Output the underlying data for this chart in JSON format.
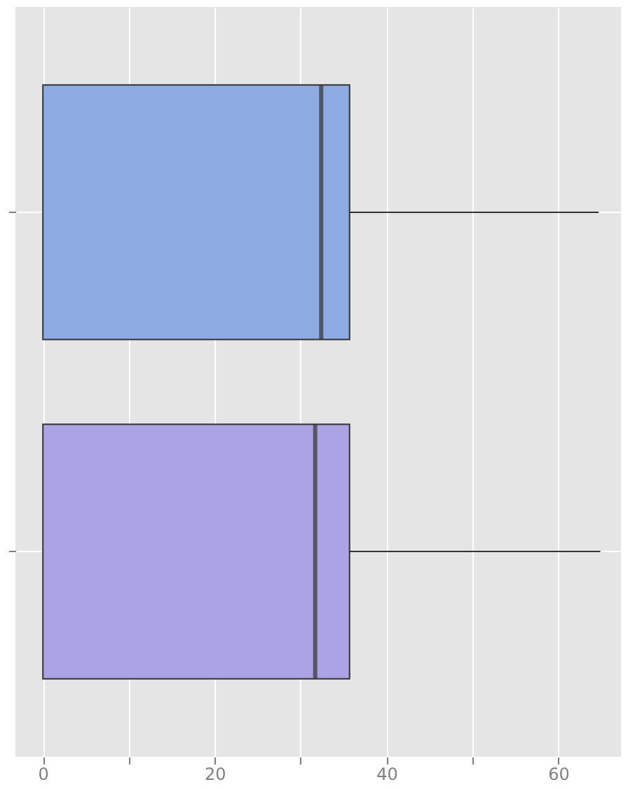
{
  "chart_data": {
    "type": "box",
    "orientation": "horizontal",
    "categories": [
      null,
      null
    ],
    "boxes": [
      {
        "low": 0,
        "q1": 0,
        "median": 32.4,
        "q3": 35.7,
        "high": 64.7
      },
      {
        "low": 0,
        "q1": 0,
        "median": 31.7,
        "q3": 35.7,
        "high": 64.9
      }
    ],
    "colors": [
      "#8eace3",
      "#aba3e3"
    ],
    "xlim": [
      -3.2,
      67.3
    ],
    "xticks": [
      0,
      {
        "value": 10,
        "label": null
      },
      20,
      {
        "value": 30,
        "label": null
      },
      40,
      {
        "value": 50,
        "label": null
      },
      60
    ],
    "grid": true,
    "tick_labels": "x"
  }
}
